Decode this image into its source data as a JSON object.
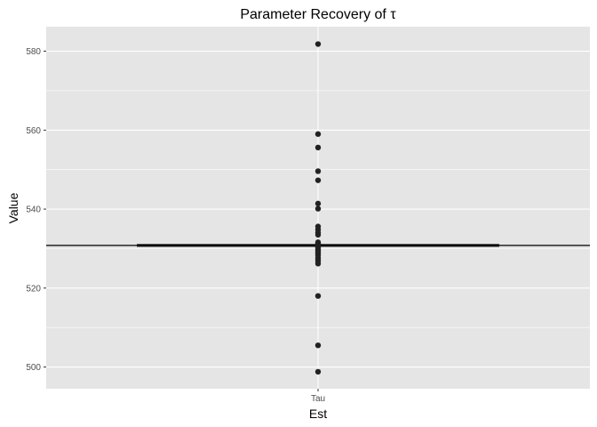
{
  "chart_data": {
    "type": "scatter",
    "title": "Parameter Recovery of τ",
    "xlabel": "Est",
    "ylabel": "Value",
    "categories": [
      "Tau"
    ],
    "ylim": [
      494.5,
      586.2
    ],
    "yticks": [
      500,
      520,
      540,
      560,
      580
    ],
    "grid": true,
    "series": [
      {
        "category": "Tau",
        "values": [
          581.8,
          559.0,
          555.6,
          549.6,
          547.3,
          541.4,
          540.1,
          535.6,
          534.8,
          534.0,
          533.5,
          531.6,
          531.3,
          531.0,
          530.6,
          530.2,
          529.8,
          529.4,
          529.0,
          528.6,
          528.2,
          527.5,
          526.9,
          526.2,
          518.0,
          505.5,
          498.8
        ]
      }
    ],
    "reference_lines": [
      {
        "kind": "hline-full",
        "y": 530.8
      },
      {
        "kind": "hline-short",
        "y": 530.8,
        "x_range": [
          0.6,
          1.4
        ]
      }
    ],
    "colors": {
      "panel": "#e5e5e5",
      "grid": "#ffffff",
      "point": "#222222",
      "line": "#000000"
    }
  }
}
